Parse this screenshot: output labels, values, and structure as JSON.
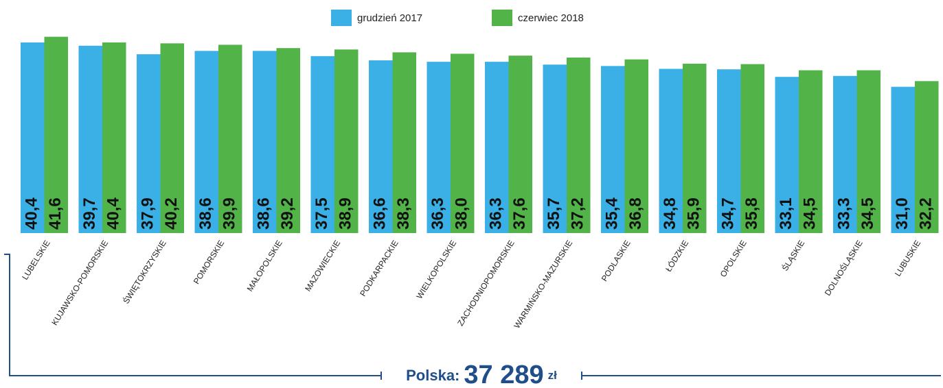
{
  "chart_data": {
    "type": "bar",
    "categories": [
      "LUBELSKIE",
      "KUJAWSKO-POMORSKIE",
      "ŚWIĘTOKRZYSKIE",
      "POMORSKIE",
      "MAŁOPOLSKIE",
      "MAZOWIECKIE",
      "PODKARPACKIE",
      "WIELKOPOLSKIE",
      "ZACHODNIOPOMORSKIE",
      "WARMIŃSKO-MAZURSKIE",
      "PODLASKIE",
      "ŁÓDZKIE",
      "OPOLSKIE",
      "ŚLĄSKIE",
      "DOLNOŚLĄSKIE",
      "LUBUSKIE"
    ],
    "series": [
      {
        "name": "grudzień 2017",
        "color": "#3bb0e6",
        "values": [
          40.4,
          39.7,
          37.9,
          38.6,
          38.6,
          37.5,
          36.6,
          36.3,
          36.3,
          35.7,
          35.4,
          34.8,
          34.7,
          33.1,
          33.3,
          31.0
        ],
        "value_labels": [
          "40,4",
          "39,7",
          "37,9",
          "38,6",
          "38,6",
          "37,5",
          "36,6",
          "36,3",
          "36,3",
          "35,7",
          "35,4",
          "34,8",
          "34,7",
          "33,1",
          "33,3",
          "31,0"
        ]
      },
      {
        "name": "czerwiec 2018",
        "color": "#52b348",
        "values": [
          41.6,
          40.4,
          40.2,
          39.9,
          39.2,
          38.9,
          38.3,
          38.0,
          37.6,
          37.2,
          36.8,
          35.9,
          35.8,
          34.5,
          34.5,
          32.2
        ],
        "value_labels": [
          "41,6",
          "40,4",
          "40,2",
          "39,9",
          "39,2",
          "38,9",
          "38,3",
          "38,0",
          "37,6",
          "37,2",
          "36,8",
          "35,9",
          "35,8",
          "34,5",
          "34,5",
          "32,2"
        ]
      }
    ],
    "ylim": [
      0,
      43
    ],
    "legend": "top",
    "footer": {
      "label": "Polska:",
      "value": "37 289",
      "unit": "zł"
    }
  }
}
